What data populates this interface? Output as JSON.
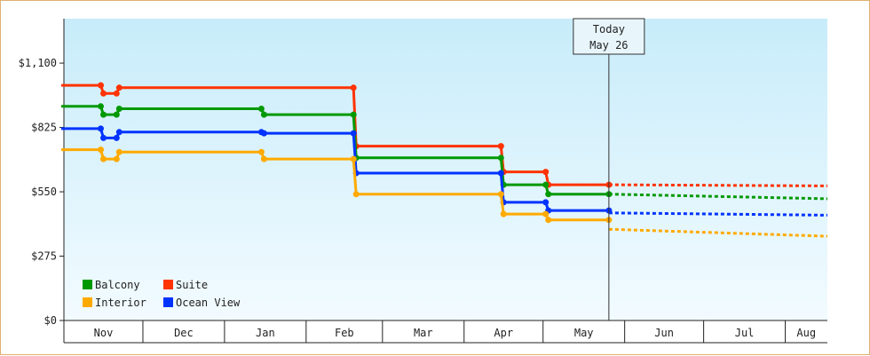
{
  "chart_data": {
    "type": "line",
    "title": "",
    "xlabel": "",
    "ylabel": "",
    "ylim": [
      0,
      1290
    ],
    "y_ticks": [
      {
        "value": 0,
        "label": "$0"
      },
      {
        "value": 275,
        "label": "$275"
      },
      {
        "value": 550,
        "label": "$550"
      },
      {
        "value": 825,
        "label": "$825"
      },
      {
        "value": 1100,
        "label": "$1,100"
      }
    ],
    "x_range": [
      "2019-11-01",
      "2020-08-17"
    ],
    "x_months": [
      {
        "label": "Nov",
        "start": "2019-11-01",
        "end": "2019-12-01"
      },
      {
        "label": "Dec",
        "start": "2019-12-01",
        "end": "2020-01-01"
      },
      {
        "label": "Jan",
        "start": "2020-01-01",
        "end": "2020-02-01"
      },
      {
        "label": "Feb",
        "start": "2020-02-01",
        "end": "2020-03-01"
      },
      {
        "label": "Mar",
        "start": "2020-03-01",
        "end": "2020-04-01"
      },
      {
        "label": "Apr",
        "start": "2020-04-01",
        "end": "2020-05-01"
      },
      {
        "label": "May",
        "start": "2020-05-01",
        "end": "2020-06-01"
      },
      {
        "label": "Jun",
        "start": "2020-06-01",
        "end": "2020-07-01"
      },
      {
        "label": "Jul",
        "start": "2020-07-01",
        "end": "2020-08-01"
      },
      {
        "label": "Aug",
        "start": "2020-08-01",
        "end": "2020-08-17"
      }
    ],
    "today": {
      "date": "2020-05-26",
      "label_line1": "Today",
      "label_line2": "May 26"
    },
    "grid": false,
    "legend_position": "bottom-left",
    "series": [
      {
        "name": "Suite",
        "color": "#ff3300",
        "history": [
          [
            "2019-10-31",
            1005
          ],
          [
            "2019-11-15",
            1005
          ],
          [
            "2019-11-16",
            970
          ],
          [
            "2019-11-21",
            970
          ],
          [
            "2019-11-22",
            995
          ],
          [
            "2020-02-19",
            995
          ],
          [
            "2020-02-20",
            745
          ],
          [
            "2020-04-15",
            745
          ],
          [
            "2020-04-16",
            635
          ],
          [
            "2020-05-02",
            635
          ],
          [
            "2020-05-03",
            580
          ],
          [
            "2020-05-26",
            580
          ]
        ],
        "forecast": [
          [
            "2020-05-26",
            580
          ],
          [
            "2020-08-17",
            575
          ]
        ]
      },
      {
        "name": "Balcony",
        "color": "#009900",
        "history": [
          [
            "2019-10-31",
            915
          ],
          [
            "2019-11-15",
            915
          ],
          [
            "2019-11-16",
            880
          ],
          [
            "2019-11-21",
            880
          ],
          [
            "2019-11-22",
            905
          ],
          [
            "2020-01-15",
            905
          ],
          [
            "2020-01-16",
            880
          ],
          [
            "2020-02-19",
            880
          ],
          [
            "2020-02-20",
            695
          ],
          [
            "2020-04-15",
            695
          ],
          [
            "2020-04-16",
            580
          ],
          [
            "2020-05-02",
            580
          ],
          [
            "2020-05-03",
            540
          ],
          [
            "2020-05-26",
            540
          ]
        ],
        "forecast": [
          [
            "2020-05-26",
            540
          ],
          [
            "2020-08-17",
            520
          ]
        ]
      },
      {
        "name": "Ocean View",
        "color": "#0033ff",
        "history": [
          [
            "2019-10-31",
            820
          ],
          [
            "2019-11-15",
            820
          ],
          [
            "2019-11-16",
            780
          ],
          [
            "2019-11-21",
            780
          ],
          [
            "2019-11-22",
            805
          ],
          [
            "2020-01-15",
            805
          ],
          [
            "2020-01-16",
            800
          ],
          [
            "2020-02-19",
            800
          ],
          [
            "2020-02-20",
            630
          ],
          [
            "2020-04-15",
            630
          ],
          [
            "2020-04-16",
            505
          ],
          [
            "2020-05-02",
            505
          ],
          [
            "2020-05-03",
            470
          ],
          [
            "2020-05-26",
            470
          ]
        ],
        "forecast": [
          [
            "2020-05-26",
            460
          ],
          [
            "2020-08-17",
            450
          ]
        ]
      },
      {
        "name": "Interior",
        "color": "#ffaa00",
        "history": [
          [
            "2019-10-31",
            730
          ],
          [
            "2019-11-15",
            730
          ],
          [
            "2019-11-16",
            690
          ],
          [
            "2019-11-21",
            690
          ],
          [
            "2019-11-22",
            720
          ],
          [
            "2020-01-15",
            720
          ],
          [
            "2020-01-16",
            690
          ],
          [
            "2020-02-19",
            690
          ],
          [
            "2020-02-20",
            540
          ],
          [
            "2020-04-15",
            540
          ],
          [
            "2020-04-16",
            455
          ],
          [
            "2020-05-02",
            455
          ],
          [
            "2020-05-03",
            430
          ],
          [
            "2020-05-26",
            430
          ]
        ],
        "forecast": [
          [
            "2020-05-26",
            390
          ],
          [
            "2020-08-17",
            360
          ]
        ]
      }
    ],
    "legend": [
      {
        "name": "Balcony",
        "color": "#009900"
      },
      {
        "name": "Suite",
        "color": "#ff3300"
      },
      {
        "name": "Interior",
        "color": "#ffaa00"
      },
      {
        "name": "Ocean View",
        "color": "#0033ff"
      }
    ]
  }
}
